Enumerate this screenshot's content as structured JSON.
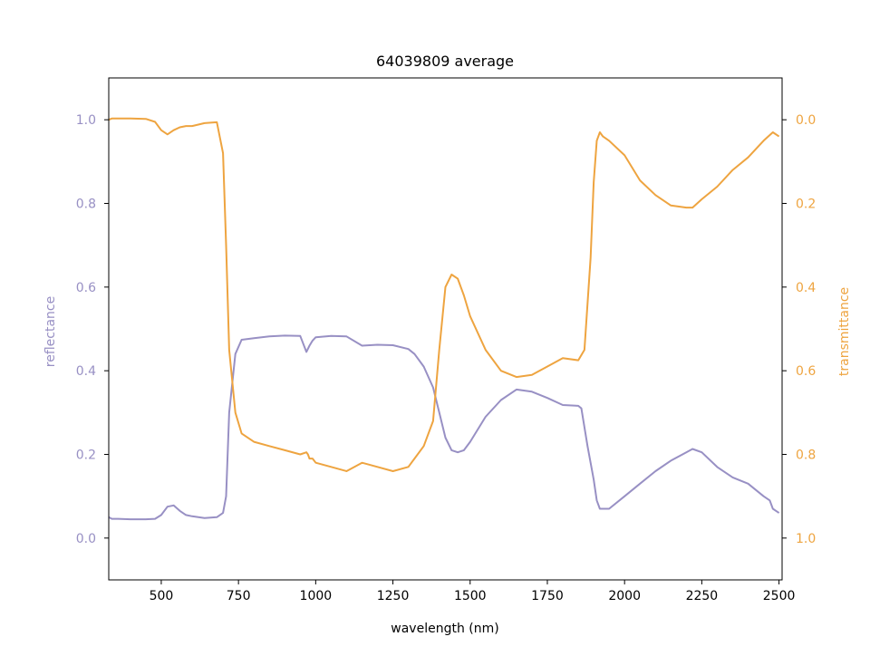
{
  "colors": {
    "reflectance": "#9890c4",
    "transmittance": "#eea440",
    "axis": "#000000",
    "background": "#ffffff"
  },
  "chart_data": {
    "type": "line",
    "title": "64039809 average",
    "xlabel": "wavelength (nm)",
    "ylabel_left": "reflectance",
    "ylabel_right": "transmittance",
    "xlim": [
      330,
      2510
    ],
    "ylim_left": [
      -0.1,
      1.1
    ],
    "ylim_right": [
      1.1,
      -0.1
    ],
    "right_axis_inverted": true,
    "grid": false,
    "x_ticks": [
      500,
      750,
      1000,
      1250,
      1500,
      1750,
      2000,
      2250,
      2500
    ],
    "x_tick_labels": [
      "500",
      "750",
      "1000",
      "1250",
      "1500",
      "1750",
      "2000",
      "2250",
      "2500"
    ],
    "y_left_ticks": [
      0.0,
      0.2,
      0.4,
      0.6,
      0.8,
      1.0
    ],
    "y_left_tick_labels": [
      "0.0",
      "0.2",
      "0.4",
      "0.6",
      "0.8",
      "1.0"
    ],
    "y_right_ticks": [
      0.0,
      0.2,
      0.4,
      0.6,
      0.8,
      1.0
    ],
    "y_right_tick_labels": [
      "0.0",
      "0.2",
      "0.4",
      "0.6",
      "0.8",
      "1.0"
    ],
    "series": [
      {
        "axis": "left",
        "x": [
          330,
          340,
          360,
          400,
          450,
          480,
          500,
          520,
          540,
          560,
          580,
          600,
          640,
          680,
          700,
          710,
          720,
          740,
          760,
          800,
          850,
          900,
          950,
          970,
          980,
          990,
          1000,
          1050,
          1100,
          1150,
          1200,
          1250,
          1300,
          1320,
          1350,
          1380,
          1400,
          1420,
          1440,
          1460,
          1480,
          1500,
          1550,
          1600,
          1650,
          1700,
          1750,
          1800,
          1850,
          1860,
          1880,
          1900,
          1910,
          1920,
          1950,
          2000,
          2050,
          2100,
          2150,
          2200,
          2220,
          2250,
          2300,
          2350,
          2400,
          2450,
          2470,
          2480,
          2490,
          2500
        ],
        "y": [
          0.05,
          0.046,
          0.046,
          0.045,
          0.045,
          0.046,
          0.055,
          0.075,
          0.078,
          0.065,
          0.055,
          0.052,
          0.048,
          0.05,
          0.06,
          0.1,
          0.3,
          0.44,
          0.474,
          0.478,
          0.482,
          0.484,
          0.483,
          0.445,
          0.46,
          0.472,
          0.48,
          0.483,
          0.482,
          0.46,
          0.462,
          0.461,
          0.452,
          0.44,
          0.41,
          0.36,
          0.3,
          0.24,
          0.21,
          0.205,
          0.21,
          0.23,
          0.29,
          0.33,
          0.355,
          0.35,
          0.335,
          0.318,
          0.316,
          0.31,
          0.22,
          0.14,
          0.09,
          0.07,
          0.07,
          0.1,
          0.13,
          0.16,
          0.185,
          0.205,
          0.213,
          0.205,
          0.17,
          0.145,
          0.13,
          0.1,
          0.09,
          0.07,
          0.065,
          0.06
        ]
      },
      {
        "axis": "right",
        "x": [
          330,
          340,
          360,
          400,
          450,
          480,
          500,
          520,
          540,
          560,
          580,
          600,
          640,
          680,
          700,
          710,
          720,
          740,
          760,
          800,
          850,
          900,
          950,
          970,
          975,
          980,
          990,
          1000,
          1050,
          1100,
          1150,
          1200,
          1250,
          1300,
          1320,
          1350,
          1380,
          1400,
          1420,
          1440,
          1460,
          1480,
          1500,
          1550,
          1600,
          1650,
          1700,
          1750,
          1800,
          1850,
          1870,
          1890,
          1900,
          1910,
          1920,
          1930,
          1950,
          2000,
          2050,
          2100,
          2150,
          2200,
          2220,
          2250,
          2300,
          2350,
          2400,
          2450,
          2480,
          2500
        ],
        "y": [
          0.0,
          -0.003,
          -0.003,
          -0.003,
          -0.002,
          0.005,
          0.025,
          0.035,
          0.025,
          0.018,
          0.015,
          0.015,
          0.008,
          0.006,
          0.08,
          0.3,
          0.55,
          0.7,
          0.75,
          0.77,
          0.78,
          0.79,
          0.8,
          0.795,
          0.8,
          0.81,
          0.81,
          0.82,
          0.83,
          0.84,
          0.82,
          0.83,
          0.84,
          0.83,
          0.81,
          0.78,
          0.72,
          0.55,
          0.4,
          0.37,
          0.38,
          0.42,
          0.47,
          0.55,
          0.6,
          0.615,
          0.61,
          0.59,
          0.57,
          0.575,
          0.55,
          0.33,
          0.15,
          0.05,
          0.03,
          0.04,
          0.05,
          0.085,
          0.145,
          0.18,
          0.205,
          0.21,
          0.21,
          0.19,
          0.16,
          0.12,
          0.09,
          0.05,
          0.03,
          0.04
        ]
      }
    ]
  }
}
